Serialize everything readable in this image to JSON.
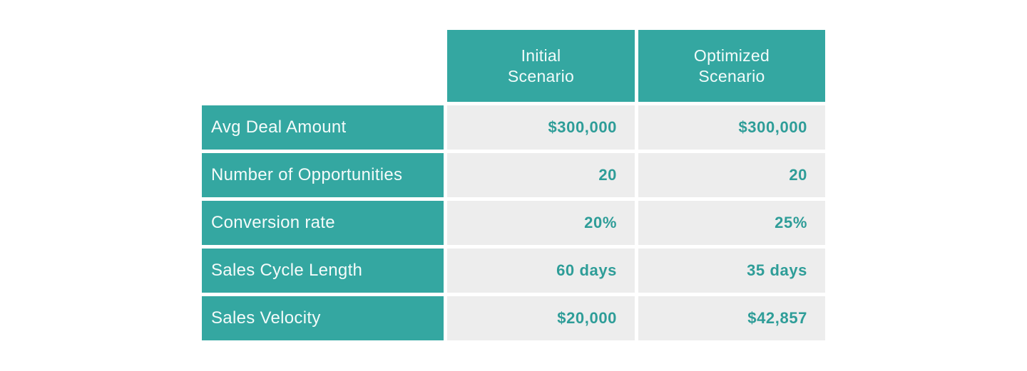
{
  "page": {
    "background_color": "#ffffff"
  },
  "colors": {
    "teal_cell_bg": "#34a7a1",
    "value_cell_bg": "#ededed",
    "value_text": "#2e9d98",
    "header_text": "#f2fbfa"
  },
  "table": {
    "headers": [
      {
        "line1": "Initial",
        "line2": "Scenario"
      },
      {
        "line1": "Optimized",
        "line2": "Scenario"
      }
    ],
    "rows": [
      {
        "label": "Avg Deal Amount",
        "initial": "$300,000",
        "optimized": "$300,000"
      },
      {
        "label": "Number of Opportunities",
        "initial": "20",
        "optimized": "20"
      },
      {
        "label": "Conversion rate",
        "initial": "20%",
        "optimized": "25%"
      },
      {
        "label": "Sales Cycle Length",
        "initial": "60 days",
        "optimized": "35 days"
      },
      {
        "label": "Sales Velocity",
        "initial": "$20,000",
        "optimized": "$42,857"
      }
    ]
  },
  "chart_data": {
    "type": "table",
    "title": "",
    "columns": [
      "",
      "Initial Scenario",
      "Optimized Scenario"
    ],
    "rows": [
      [
        "Avg Deal Amount",
        "$300,000",
        "$300,000"
      ],
      [
        "Number of Opportunities",
        "20",
        "20"
      ],
      [
        "Conversion rate",
        "20%",
        "25%"
      ],
      [
        "Sales Cycle Length",
        "60 days",
        "35 days"
      ],
      [
        "Sales Velocity",
        "$20,000",
        "$42,857"
      ]
    ],
    "layout": {
      "header_bg": "#34a7a1",
      "row_label_bg": "#34a7a1",
      "value_bg": "#ededed",
      "value_text_color": "#2e9d98",
      "value_alignment": "right",
      "grid": "white gaps between cells"
    }
  }
}
